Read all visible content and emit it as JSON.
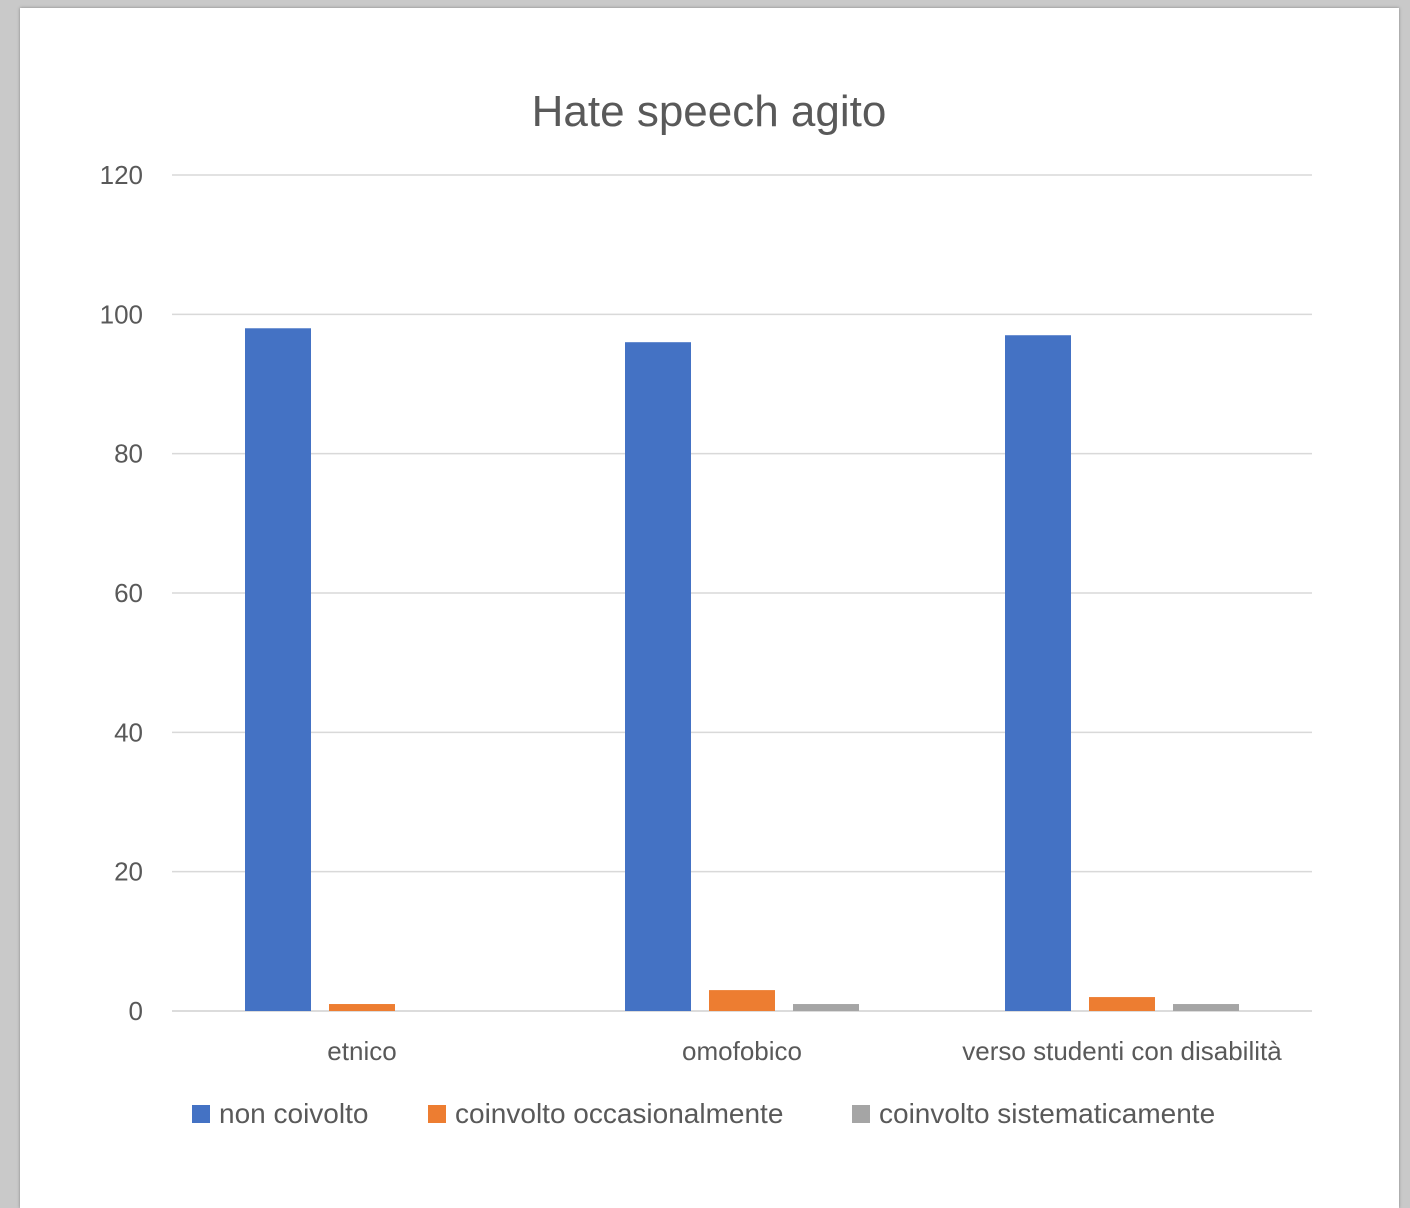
{
  "chart_data": {
    "type": "bar",
    "title": "Hate speech agito",
    "xlabel": "",
    "ylabel": "",
    "categories": [
      "etnico",
      "omofobico",
      "verso studenti con disabilità"
    ],
    "series": [
      {
        "name": "non coivolto",
        "color": "#4472C4",
        "values": [
          98,
          96,
          97
        ]
      },
      {
        "name": "coinvolto occasionalmente",
        "color": "#ED7D31",
        "values": [
          1,
          3,
          2
        ]
      },
      {
        "name": "coinvolto sistematicamente",
        "color": "#A5A5A5",
        "values": [
          0,
          1,
          1
        ]
      }
    ],
    "ylim": [
      0,
      120
    ],
    "yticks": [
      0,
      20,
      40,
      60,
      80,
      100,
      120
    ],
    "grid": true,
    "legend_position": "bottom"
  }
}
